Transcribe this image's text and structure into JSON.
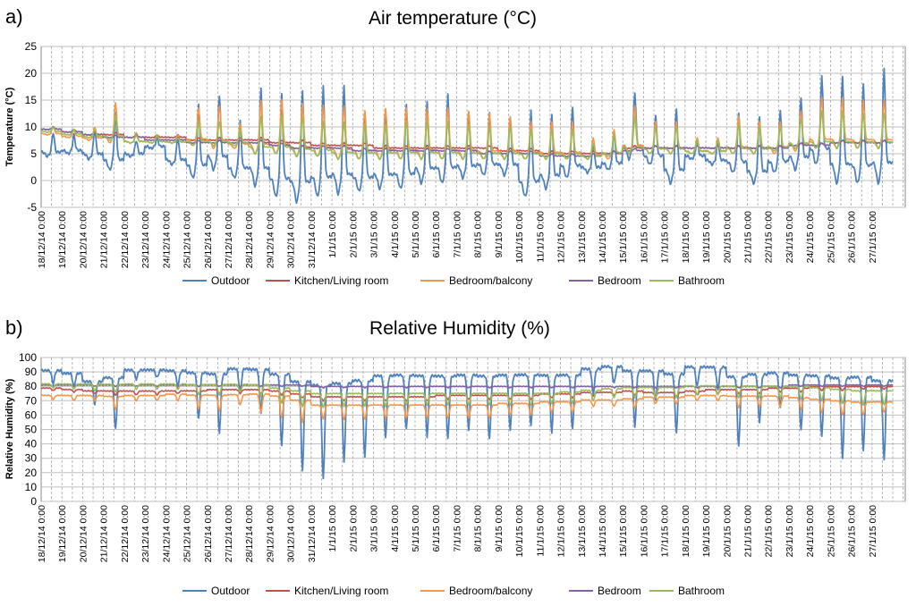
{
  "chart_data": [
    {
      "panel_label": "a)",
      "type": "line",
      "title": "Air temperature (°C)",
      "ylabel": "Temperature (°C)",
      "xlabel": "",
      "ylim": [
        -5,
        25
      ],
      "yticks": [
        -5,
        0,
        5,
        10,
        15,
        20,
        25
      ],
      "grid": true,
      "legend_position": "bottom",
      "x_tick_labels": [
        "18/12/14 0:00",
        "19/12/14 0:00",
        "20/12/14 0:00",
        "21/12/14 0:00",
        "22/12/14 0:00",
        "23/12/14 0:00",
        "24/12/14 0:00",
        "25/12/14 0:00",
        "26/12/14 0:00",
        "27/12/14 0:00",
        "28/12/14 0:00",
        "29/12/14 0:00",
        "30/12/14 0:00",
        "31/12/14 0:00",
        "1/1/15 0:00",
        "2/1/15 0:00",
        "3/1/15 0:00",
        "4/1/15 0:00",
        "5/1/15 0:00",
        "6/1/15 0:00",
        "7/1/15 0:00",
        "8/1/15 0:00",
        "9/1/15 0:00",
        "10/1/15 0:00",
        "11/1/15 0:00",
        "12/1/15 0:00",
        "13/1/15 0:00",
        "14/1/15 0:00",
        "15/1/15 0:00",
        "16/1/15 0:00",
        "17/1/15 0:00",
        "18/1/15 0:00",
        "19/1/15 0:00",
        "20/1/15 0:00",
        "21/1/15 0:00",
        "22/1/15 0:00",
        "23/1/15 0:00",
        "24/1/15 0:00",
        "25/1/15 0:00",
        "26/1/15 0:00",
        "27/1/15 0:00"
      ],
      "series": [
        {
          "name": "Outdoor",
          "color": "#4f81bd",
          "daily_min": [
            4.5,
            5,
            4,
            2,
            4.5,
            6,
            3,
            0.5,
            2,
            0.5,
            -1,
            -3,
            -4,
            -3,
            -2.5,
            -2,
            -1.5,
            -1.5,
            -0.5,
            -0.5,
            0.5,
            1,
            1,
            -3,
            -1.5,
            0.5,
            1.5,
            2,
            4,
            3,
            -0.5,
            4,
            3,
            1.5,
            -0.5,
            1.5,
            2,
            3,
            -0.5,
            -0.5,
            -0.5
          ],
          "daily_max": [
            9,
            8.5,
            9.5,
            12.5,
            7.5,
            8,
            8,
            14,
            16,
            11,
            17.5,
            16,
            17,
            17.5,
            18,
            12.5,
            13,
            14,
            15,
            16,
            13,
            12.5,
            12,
            13,
            12.5,
            13.5,
            7,
            9,
            16.5,
            12,
            13.5,
            7.5,
            7.5,
            12.5,
            12,
            13,
            15.5,
            19.5,
            19.5,
            18,
            21
          ]
        },
        {
          "name": "Kitchen/Living room",
          "color": "#c0504d",
          "daily_min": [
            9.5,
            9,
            8.5,
            8.5,
            8,
            8,
            8,
            7.5,
            7.5,
            7.5,
            7.5,
            7,
            7,
            6.5,
            6.5,
            6.5,
            6,
            6,
            6,
            6,
            6,
            6,
            5.5,
            5.5,
            5,
            5,
            5,
            5,
            6,
            6,
            6,
            6,
            6,
            6,
            6,
            6,
            6.5,
            6.5,
            7,
            7,
            7
          ],
          "daily_max": [
            10,
            9.5,
            9,
            9,
            8.5,
            8.5,
            8.5,
            8,
            8,
            8,
            8,
            7.5,
            7.5,
            7,
            7,
            7,
            6.5,
            6.5,
            6.5,
            6.5,
            6.5,
            6.5,
            6,
            6,
            5.5,
            5.5,
            5.5,
            5.5,
            6.5,
            6.5,
            6.5,
            6.5,
            6.5,
            6.5,
            6.5,
            6.5,
            7,
            7,
            7.5,
            7.5,
            7.5
          ]
        },
        {
          "name": "Bedroom/balcony",
          "color": "#f79646",
          "daily_min": [
            8.5,
            8,
            7.5,
            7,
            7,
            7,
            7,
            6.5,
            6,
            6,
            5,
            5,
            4.5,
            4.5,
            4,
            4,
            4,
            4,
            4,
            4,
            4,
            4,
            4,
            4,
            4,
            4,
            4,
            4,
            5,
            5,
            5,
            5,
            5,
            5,
            5,
            5,
            5.5,
            6,
            6,
            6,
            6
          ],
          "daily_max": [
            10,
            9.5,
            10,
            14.5,
            9,
            8.5,
            8.5,
            13.5,
            14,
            10.5,
            15,
            15,
            14.5,
            14,
            14,
            13,
            13.5,
            13.5,
            13.5,
            13.5,
            13,
            12.5,
            12,
            11,
            11,
            11,
            8,
            9.5,
            14,
            11,
            11,
            8,
            8,
            12,
            11,
            11,
            13,
            15.5,
            15.5,
            15,
            15
          ]
        },
        {
          "name": "Bedroom",
          "color": "#8064a2",
          "daily_min": [
            9.5,
            9,
            8.5,
            8,
            8,
            7.5,
            7.5,
            7,
            7,
            7,
            7,
            6.5,
            6,
            6,
            6,
            5.5,
            5.5,
            5.5,
            5.5,
            5.5,
            5.5,
            5,
            5,
            5,
            4.5,
            4.5,
            4.5,
            5,
            5.5,
            6,
            6,
            6,
            6,
            6,
            6,
            6,
            6.5,
            6.5,
            7,
            7,
            7
          ],
          "daily_max": [
            10,
            9.5,
            9,
            8.5,
            8.5,
            8,
            8,
            7.5,
            7.5,
            7.5,
            7.5,
            7,
            6.5,
            6.5,
            6.5,
            6,
            6,
            6,
            6,
            6,
            6,
            5.5,
            5.5,
            5.5,
            5,
            5,
            5,
            5.5,
            6,
            6.5,
            6.5,
            6.5,
            6.5,
            6.5,
            6.5,
            6.5,
            7,
            7,
            7.5,
            7.5,
            7.5
          ]
        },
        {
          "name": "Bathroom",
          "color": "#9bbb59",
          "daily_min": [
            9,
            8.5,
            8,
            7.5,
            7,
            7,
            7,
            6.5,
            6.5,
            6.5,
            5,
            5,
            4.5,
            4.5,
            4,
            4,
            4,
            4,
            4,
            4,
            4,
            4,
            4,
            4,
            4,
            4,
            4,
            4.5,
            5,
            5,
            5,
            5,
            5,
            5,
            5,
            5.5,
            6,
            6,
            6,
            6,
            6
          ],
          "daily_max": [
            10,
            9.5,
            9.5,
            12,
            8.5,
            8.5,
            8,
            11,
            11,
            9.5,
            12,
            12,
            12,
            11,
            11,
            10.5,
            10.5,
            11,
            11,
            11,
            10.5,
            10,
            10,
            9.5,
            9.5,
            9.5,
            7,
            8.5,
            12,
            10,
            10,
            7.5,
            7.5,
            10.5,
            10,
            10,
            11.5,
            13,
            13,
            12.5,
            12.5
          ]
        }
      ]
    },
    {
      "panel_label": "b)",
      "type": "line",
      "title": "Relative Humidity (%)",
      "ylabel": "Relative Humidity (%)",
      "xlabel": "",
      "ylim": [
        0,
        100
      ],
      "yticks": [
        0,
        10,
        20,
        30,
        40,
        50,
        60,
        70,
        80,
        90,
        100
      ],
      "grid": true,
      "legend_position": "bottom",
      "x_tick_labels": [
        "18/12/14 0:00",
        "19/12/14 0:00",
        "20/12/14 0:00",
        "21/12/14 0:00",
        "22/12/14 0:00",
        "23/12/14 0:00",
        "24/12/14 0:00",
        "25/12/14 0:00",
        "26/12/14 0:00",
        "27/12/14 0:00",
        "28/12/14 0:00",
        "29/12/14 0:00",
        "30/12/14 0:00",
        "31/12/14 0:00",
        "1/1/15 0:00",
        "2/1/15 0:00",
        "3/1/15 0:00",
        "4/1/15 0:00",
        "5/1/15 0:00",
        "6/1/15 0:00",
        "7/1/15 0:00",
        "8/1/15 0:00",
        "9/1/15 0:00",
        "10/1/15 0:00",
        "11/1/15 0:00",
        "12/1/15 0:00",
        "13/1/15 0:00",
        "14/1/15 0:00",
        "15/1/15 0:00",
        "16/1/15 0:00",
        "17/1/15 0:00",
        "18/1/15 0:00",
        "19/1/15 0:00",
        "20/1/15 0:00",
        "21/1/15 0:00",
        "22/1/15 0:00",
        "23/1/15 0:00",
        "24/1/15 0:00",
        "25/1/15 0:00",
        "26/1/15 0:00",
        "27/1/15 0:00"
      ],
      "series": [
        {
          "name": "Outdoor",
          "color": "#4f81bd",
          "daily_min": [
            82,
            80,
            68,
            50,
            85,
            86,
            80,
            57,
            48,
            76,
            62,
            38,
            22,
            15,
            28,
            30,
            45,
            50,
            45,
            43,
            50,
            43,
            50,
            52,
            48,
            50,
            75,
            82,
            52,
            70,
            48,
            80,
            78,
            38,
            55,
            65,
            50,
            45,
            30,
            35,
            29
          ],
          "daily_max": [
            92,
            90,
            85,
            90,
            92,
            92,
            92,
            93,
            93,
            94,
            95,
            94,
            90,
            88,
            88,
            90,
            92,
            92,
            92,
            92,
            92,
            92,
            92,
            92,
            92,
            92,
            94,
            95,
            95,
            93,
            93,
            95,
            95,
            92,
            92,
            92,
            92,
            92,
            92,
            92,
            90
          ]
        },
        {
          "name": "Kitchen/Living room",
          "color": "#c0504d",
          "daily_min": [
            77,
            76,
            75,
            74,
            74,
            74,
            75,
            75,
            75,
            75,
            75,
            74,
            72,
            70,
            70,
            70,
            70,
            70,
            70,
            71,
            71,
            71,
            71,
            71,
            72,
            72,
            73,
            74,
            74,
            73,
            73,
            74,
            75,
            75,
            75,
            76,
            76,
            77,
            77,
            78,
            78
          ],
          "daily_max": [
            79,
            78,
            77,
            77,
            77,
            77,
            77,
            77,
            78,
            78,
            78,
            77,
            75,
            73,
            73,
            73,
            73,
            73,
            73,
            74,
            74,
            74,
            74,
            74,
            75,
            75,
            76,
            76,
            77,
            76,
            76,
            77,
            78,
            78,
            78,
            79,
            79,
            80,
            80,
            80,
            80
          ]
        },
        {
          "name": "Bedroom/balcony",
          "color": "#f79646",
          "daily_min": [
            71,
            70,
            70,
            64,
            70,
            70,
            70,
            64,
            63,
            67,
            62,
            58,
            55,
            57,
            57,
            57,
            58,
            58,
            58,
            58,
            58,
            58,
            60,
            60,
            62,
            62,
            66,
            66,
            65,
            68,
            68,
            70,
            70,
            65,
            66,
            66,
            64,
            62,
            60,
            60,
            62
          ],
          "daily_max": [
            74,
            74,
            74,
            74,
            74,
            74,
            75,
            75,
            75,
            75,
            76,
            75,
            72,
            68,
            68,
            68,
            68,
            68,
            68,
            68,
            68,
            68,
            69,
            69,
            70,
            70,
            71,
            71,
            72,
            73,
            73,
            74,
            74,
            74,
            74,
            74,
            73,
            72,
            71,
            70,
            70
          ]
        },
        {
          "name": "Bedroom",
          "color": "#8064a2",
          "daily_min": [
            80,
            80,
            80,
            80,
            80,
            80,
            80,
            80,
            80,
            80,
            80,
            80,
            80,
            79,
            79,
            79,
            79,
            79,
            79,
            79,
            79,
            79,
            79,
            79,
            79,
            79,
            79,
            79,
            79,
            79,
            79,
            79,
            79,
            79,
            79,
            79,
            80,
            80,
            80,
            80,
            80
          ],
          "daily_max": [
            81,
            81,
            81,
            81,
            81,
            81,
            81,
            81,
            81,
            81,
            81,
            81,
            81,
            80,
            80,
            80,
            80,
            80,
            80,
            80,
            80,
            80,
            80,
            80,
            80,
            80,
            80,
            80,
            80,
            80,
            80,
            80,
            80,
            80,
            80,
            80,
            81,
            81,
            81,
            81,
            81
          ]
        },
        {
          "name": "Bathroom",
          "color": "#9bbb59",
          "daily_min": [
            79,
            78,
            77,
            76,
            78,
            78,
            78,
            74,
            74,
            76,
            73,
            68,
            66,
            65,
            66,
            66,
            66,
            67,
            67,
            67,
            67,
            67,
            67,
            67,
            68,
            68,
            70,
            72,
            72,
            72,
            72,
            74,
            74,
            72,
            72,
            72,
            71,
            70,
            68,
            67,
            67
          ],
          "daily_max": [
            82,
            82,
            82,
            82,
            82,
            82,
            82,
            82,
            82,
            82,
            82,
            80,
            78,
            76,
            76,
            76,
            76,
            76,
            76,
            76,
            76,
            76,
            76,
            76,
            76,
            77,
            78,
            79,
            80,
            80,
            80,
            81,
            81,
            81,
            81,
            81,
            81,
            80,
            79,
            78,
            78
          ]
        }
      ]
    }
  ]
}
